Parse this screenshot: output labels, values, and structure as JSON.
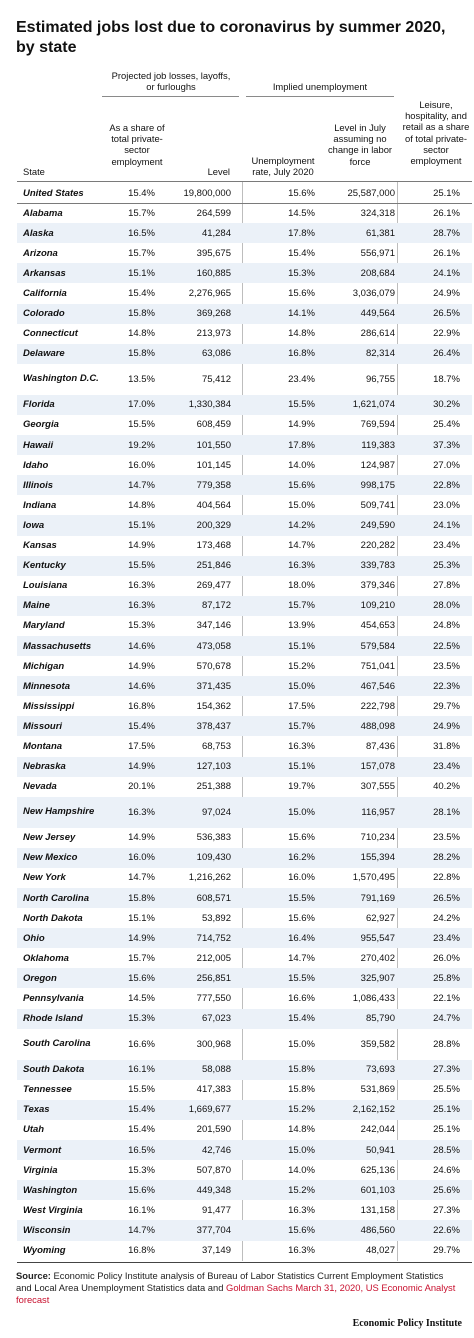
{
  "title": "Estimated jobs lost due to coronavirus by summer 2020, by state",
  "headers": {
    "group_projected": "Projected job losses, layoffs, or furloughs",
    "group_implied": "Implied unemployment",
    "state": "State",
    "share": "As a share of total private-sector employment",
    "level": "Level",
    "rate": "Unemployment rate, July 2020",
    "july_level": "Level in July assuming no change in labor force",
    "leisure": "Leisure, hospitality, and retail as a share of total private-sector employment"
  },
  "us": {
    "state": "United States",
    "share": "15.4%",
    "level": "19,800,000",
    "rate": "15.6%",
    "july_level": "25,587,000",
    "leisure": "25.1%"
  },
  "rows": [
    {
      "state": "Alabama",
      "share": "15.7%",
      "level": "264,599",
      "rate": "14.5%",
      "july_level": "324,318",
      "leisure": "26.1%"
    },
    {
      "state": "Alaska",
      "share": "16.5%",
      "level": "41,284",
      "rate": "17.8%",
      "july_level": "61,381",
      "leisure": "28.7%"
    },
    {
      "state": "Arizona",
      "share": "15.7%",
      "level": "395,675",
      "rate": "15.4%",
      "july_level": "556,971",
      "leisure": "26.1%"
    },
    {
      "state": "Arkansas",
      "share": "15.1%",
      "level": "160,885",
      "rate": "15.3%",
      "july_level": "208,684",
      "leisure": "24.1%"
    },
    {
      "state": "California",
      "share": "15.4%",
      "level": "2,276,965",
      "rate": "15.6%",
      "july_level": "3,036,079",
      "leisure": "24.9%"
    },
    {
      "state": "Colorado",
      "share": "15.8%",
      "level": "369,268",
      "rate": "14.1%",
      "july_level": "449,564",
      "leisure": "26.5%"
    },
    {
      "state": "Connecticut",
      "share": "14.8%",
      "level": "213,973",
      "rate": "14.8%",
      "july_level": "286,614",
      "leisure": "22.9%"
    },
    {
      "state": "Delaware",
      "share": "15.8%",
      "level": "63,086",
      "rate": "16.8%",
      "july_level": "82,314",
      "leisure": "26.4%"
    },
    {
      "state": "Washington D.C.",
      "share": "13.5%",
      "level": "75,412",
      "rate": "23.4%",
      "july_level": "96,755",
      "leisure": "18.7%"
    },
    {
      "state": "Florida",
      "share": "17.0%",
      "level": "1,330,384",
      "rate": "15.5%",
      "july_level": "1,621,074",
      "leisure": "30.2%"
    },
    {
      "state": "Georgia",
      "share": "15.5%",
      "level": "608,459",
      "rate": "14.9%",
      "july_level": "769,594",
      "leisure": "25.4%"
    },
    {
      "state": "Hawaii",
      "share": "19.2%",
      "level": "101,550",
      "rate": "17.8%",
      "july_level": "119,383",
      "leisure": "37.3%"
    },
    {
      "state": "Idaho",
      "share": "16.0%",
      "level": "101,145",
      "rate": "14.0%",
      "july_level": "124,987",
      "leisure": "27.0%"
    },
    {
      "state": "Illinois",
      "share": "14.7%",
      "level": "779,358",
      "rate": "15.6%",
      "july_level": "998,175",
      "leisure": "22.8%"
    },
    {
      "state": "Indiana",
      "share": "14.8%",
      "level": "404,564",
      "rate": "15.0%",
      "july_level": "509,741",
      "leisure": "23.0%"
    },
    {
      "state": "Iowa",
      "share": "15.1%",
      "level": "200,329",
      "rate": "14.2%",
      "july_level": "249,590",
      "leisure": "24.1%"
    },
    {
      "state": "Kansas",
      "share": "14.9%",
      "level": "173,468",
      "rate": "14.7%",
      "july_level": "220,282",
      "leisure": "23.4%"
    },
    {
      "state": "Kentucky",
      "share": "15.5%",
      "level": "251,846",
      "rate": "16.3%",
      "july_level": "339,783",
      "leisure": "25.3%"
    },
    {
      "state": "Louisiana",
      "share": "16.3%",
      "level": "269,477",
      "rate": "18.0%",
      "july_level": "379,346",
      "leisure": "27.8%"
    },
    {
      "state": "Maine",
      "share": "16.3%",
      "level": "87,172",
      "rate": "15.7%",
      "july_level": "109,210",
      "leisure": "28.0%"
    },
    {
      "state": "Maryland",
      "share": "15.3%",
      "level": "347,146",
      "rate": "13.9%",
      "july_level": "454,653",
      "leisure": "24.8%"
    },
    {
      "state": "Massachusetts",
      "share": "14.6%",
      "level": "473,058",
      "rate": "15.1%",
      "july_level": "579,584",
      "leisure": "22.5%"
    },
    {
      "state": "Michigan",
      "share": "14.9%",
      "level": "570,678",
      "rate": "15.2%",
      "july_level": "751,041",
      "leisure": "23.5%"
    },
    {
      "state": "Minnesota",
      "share": "14.6%",
      "level": "371,435",
      "rate": "15.0%",
      "july_level": "467,546",
      "leisure": "22.3%"
    },
    {
      "state": "Mississippi",
      "share": "16.8%",
      "level": "154,362",
      "rate": "17.5%",
      "july_level": "222,798",
      "leisure": "29.7%"
    },
    {
      "state": "Missouri",
      "share": "15.4%",
      "level": "378,437",
      "rate": "15.7%",
      "july_level": "488,098",
      "leisure": "24.9%"
    },
    {
      "state": "Montana",
      "share": "17.5%",
      "level": "68,753",
      "rate": "16.3%",
      "july_level": "87,436",
      "leisure": "31.8%"
    },
    {
      "state": "Nebraska",
      "share": "14.9%",
      "level": "127,103",
      "rate": "15.1%",
      "july_level": "157,078",
      "leisure": "23.4%"
    },
    {
      "state": "Nevada",
      "share": "20.1%",
      "level": "251,388",
      "rate": "19.7%",
      "july_level": "307,555",
      "leisure": "40.2%"
    },
    {
      "state": "New Hampshire",
      "share": "16.3%",
      "level": "97,024",
      "rate": "15.0%",
      "july_level": "116,957",
      "leisure": "28.1%"
    },
    {
      "state": "New Jersey",
      "share": "14.9%",
      "level": "536,383",
      "rate": "15.6%",
      "july_level": "710,234",
      "leisure": "23.5%"
    },
    {
      "state": "New Mexico",
      "share": "16.0%",
      "level": "109,430",
      "rate": "16.2%",
      "july_level": "155,394",
      "leisure": "28.2%"
    },
    {
      "state": "New York",
      "share": "14.7%",
      "level": "1,216,262",
      "rate": "16.0%",
      "july_level": "1,570,495",
      "leisure": "22.8%"
    },
    {
      "state": "North Carolina",
      "share": "15.8%",
      "level": "608,571",
      "rate": "15.5%",
      "july_level": "791,169",
      "leisure": "26.5%"
    },
    {
      "state": "North Dakota",
      "share": "15.1%",
      "level": "53,892",
      "rate": "15.6%",
      "july_level": "62,927",
      "leisure": "24.2%"
    },
    {
      "state": "Ohio",
      "share": "14.9%",
      "level": "714,752",
      "rate": "16.4%",
      "july_level": "955,547",
      "leisure": "23.4%"
    },
    {
      "state": "Oklahoma",
      "share": "15.7%",
      "level": "212,005",
      "rate": "14.7%",
      "july_level": "270,402",
      "leisure": "26.0%"
    },
    {
      "state": "Oregon",
      "share": "15.6%",
      "level": "256,851",
      "rate": "15.5%",
      "july_level": "325,907",
      "leisure": "25.8%"
    },
    {
      "state": "Pennsylvania",
      "share": "14.5%",
      "level": "777,550",
      "rate": "16.6%",
      "july_level": "1,086,433",
      "leisure": "22.1%"
    },
    {
      "state": "Rhode Island",
      "share": "15.3%",
      "level": "67,023",
      "rate": "15.4%",
      "july_level": "85,790",
      "leisure": "24.7%"
    },
    {
      "state": "South Carolina",
      "share": "16.6%",
      "level": "300,968",
      "rate": "15.0%",
      "july_level": "359,582",
      "leisure": "28.8%"
    },
    {
      "state": "South Dakota",
      "share": "16.1%",
      "level": "58,088",
      "rate": "15.8%",
      "july_level": "73,693",
      "leisure": "27.3%"
    },
    {
      "state": "Tennessee",
      "share": "15.5%",
      "level": "417,383",
      "rate": "15.8%",
      "july_level": "531,869",
      "leisure": "25.5%"
    },
    {
      "state": "Texas",
      "share": "15.4%",
      "level": "1,669,677",
      "rate": "15.2%",
      "july_level": "2,162,152",
      "leisure": "25.1%"
    },
    {
      "state": "Utah",
      "share": "15.4%",
      "level": "201,590",
      "rate": "14.8%",
      "july_level": "242,044",
      "leisure": "25.1%"
    },
    {
      "state": "Vermont",
      "share": "16.5%",
      "level": "42,746",
      "rate": "15.0%",
      "july_level": "50,941",
      "leisure": "28.5%"
    },
    {
      "state": "Virginia",
      "share": "15.3%",
      "level": "507,870",
      "rate": "14.0%",
      "july_level": "625,136",
      "leisure": "24.6%"
    },
    {
      "state": "Washington",
      "share": "15.6%",
      "level": "449,348",
      "rate": "15.2%",
      "july_level": "601,103",
      "leisure": "25.6%"
    },
    {
      "state": "West Virginia",
      "share": "16.1%",
      "level": "91,477",
      "rate": "16.3%",
      "july_level": "131,158",
      "leisure": "27.3%"
    },
    {
      "state": "Wisconsin",
      "share": "14.7%",
      "level": "377,704",
      "rate": "15.6%",
      "july_level": "486,560",
      "leisure": "22.6%"
    },
    {
      "state": "Wyoming",
      "share": "16.8%",
      "level": "37,149",
      "rate": "16.3%",
      "july_level": "48,027",
      "leisure": "29.7%"
    }
  ],
  "source": {
    "label": "Source:",
    "text": "Economic Policy Institute analysis of Bureau of Labor Statistics Current Employment Statistics and Local Area Unemployment Statistics data and",
    "link": "Goldman Sachs March 31, 2020, US Economic Analyst forecast"
  },
  "brand": "Economic Policy Institute"
}
